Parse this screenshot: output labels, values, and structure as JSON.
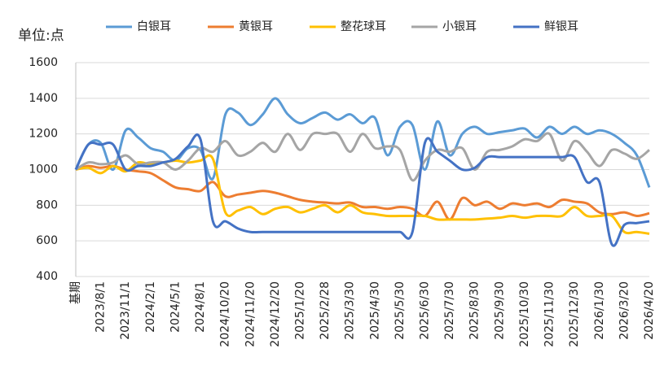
{
  "chart_data": {
    "type": "line",
    "y_axis_label": "单位:点",
    "categories": [
      "基期",
      null,
      "2023/8/1",
      null,
      "2023/11/1",
      null,
      "2024/2/1",
      null,
      "2024/5/1",
      null,
      "2024/8/1",
      null,
      "2024/10/20",
      null,
      "2024/11/20",
      null,
      "2024/12/20",
      null,
      "2025/1/20",
      null,
      "2025/2/28",
      null,
      "2025/3/30",
      null,
      "2025/4/30",
      null,
      "2025/5/30",
      null,
      "2025/6/30",
      null,
      "2025/7/30",
      null,
      "2025/8/30",
      null,
      "2025/9/30",
      null,
      "2025/10/30",
      null,
      "2025/11/30",
      null,
      "2025/12/30",
      null,
      "2026/1/30",
      null,
      "2026/3/20",
      null,
      "2026/4/20"
    ],
    "series": [
      {
        "name": "白银耳",
        "color": "#5b9bd5",
        "values": [
          1000,
          1140,
          1150,
          1000,
          1220,
          1180,
          1120,
          1100,
          1050,
          1120,
          1110,
          950,
          1310,
          1320,
          1250,
          1310,
          1400,
          1310,
          1260,
          1290,
          1320,
          1280,
          1310,
          1260,
          1290,
          1080,
          1240,
          1250,
          1000,
          1270,
          1080,
          1200,
          1240,
          1200,
          1210,
          1220,
          1230,
          1180,
          1240,
          1200,
          1240,
          1200,
          1220,
          1200,
          1150,
          1080,
          900
        ]
      },
      {
        "name": "黄银耳",
        "color": "#ed7d31",
        "values": [
          1000,
          1020,
          1010,
          1020,
          1000,
          990,
          980,
          940,
          900,
          890,
          880,
          930,
          850,
          860,
          870,
          880,
          870,
          850,
          830,
          820,
          815,
          810,
          815,
          790,
          790,
          780,
          790,
          780,
          740,
          820,
          720,
          840,
          800,
          820,
          780,
          810,
          800,
          810,
          790,
          830,
          820,
          810,
          760,
          750,
          760,
          740,
          755
        ]
      },
      {
        "name": "整花球耳",
        "color": "#ffc000",
        "values": [
          1000,
          1010,
          980,
          1020,
          990,
          1040,
          1030,
          1040,
          1050,
          1040,
          1050,
          1060,
          760,
          770,
          790,
          750,
          780,
          790,
          760,
          780,
          800,
          760,
          800,
          760,
          750,
          740,
          740,
          740,
          740,
          720,
          720,
          720,
          720,
          725,
          730,
          740,
          730,
          740,
          740,
          740,
          790,
          740,
          740,
          740,
          650,
          650,
          640
        ]
      },
      {
        "name": "小银耳",
        "color": "#a5a5a5",
        "values": [
          1000,
          1040,
          1030,
          1040,
          1080,
          1030,
          1040,
          1040,
          1000,
          1050,
          1120,
          1100,
          1160,
          1080,
          1100,
          1150,
          1100,
          1200,
          1110,
          1200,
          1200,
          1200,
          1100,
          1200,
          1120,
          1130,
          1110,
          940,
          1050,
          1110,
          1100,
          1120,
          1000,
          1100,
          1110,
          1130,
          1170,
          1160,
          1200,
          1050,
          1160,
          1100,
          1020,
          1110,
          1090,
          1060,
          1110
        ]
      },
      {
        "name": "鲜银耳",
        "color": "#4472c4",
        "values": [
          1000,
          1140,
          1140,
          1140,
          1000,
          1020,
          1020,
          1040,
          1060,
          1130,
          1170,
          710,
          710,
          670,
          650,
          650,
          650,
          650,
          650,
          650,
          650,
          650,
          650,
          650,
          650,
          650,
          650,
          650,
          1150,
          1100,
          1050,
          1000,
          1010,
          1070,
          1070,
          1070,
          1070,
          1070,
          1070,
          1070,
          1070,
          930,
          930,
          580,
          690,
          700,
          710
        ]
      }
    ],
    "ylim": [
      400,
      1600
    ],
    "yticks": [
      400,
      600,
      800,
      1000,
      1200,
      1400,
      1600
    ],
    "grid": true,
    "legend": "top"
  }
}
